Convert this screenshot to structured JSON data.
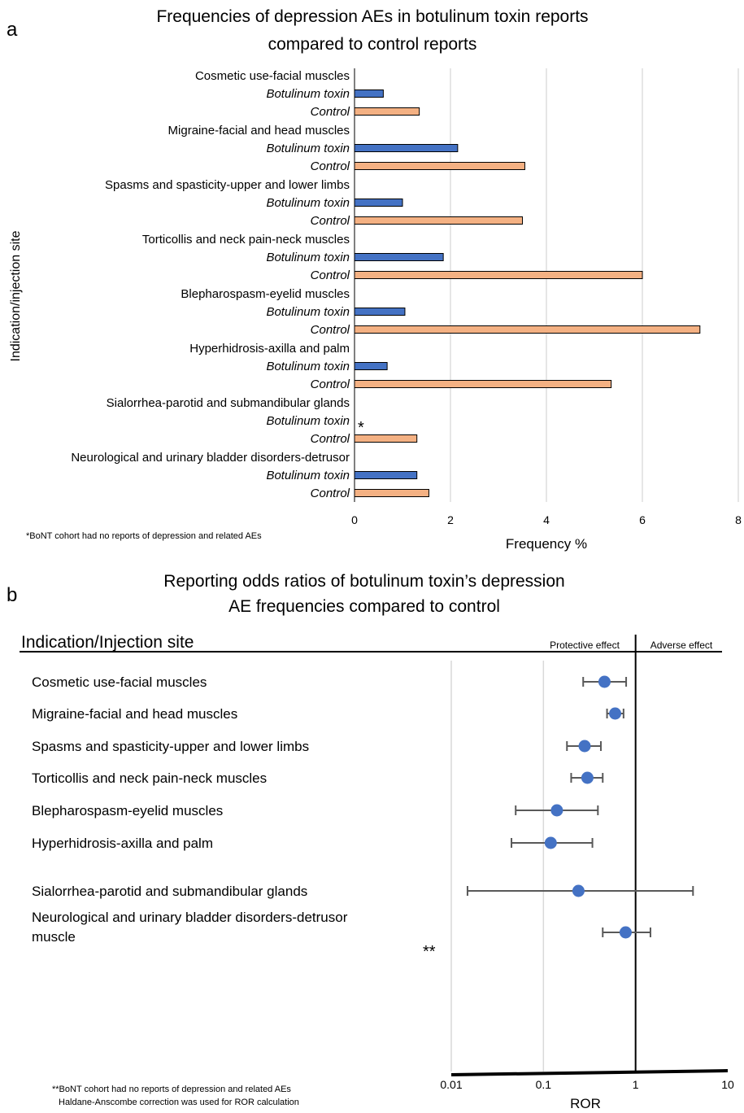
{
  "panel_a": {
    "letter": "a",
    "title_lines": [
      "Frequencies of depression AEs in botulinum toxin reports",
      "compared to control reports"
    ],
    "ylabel": "Indication/injection site",
    "xlabel": "Frequency %",
    "footnote": "*BoNT cohort had no reports of depression and related AEs",
    "asterisk": "*"
  },
  "panel_b": {
    "letter": "b",
    "title_lines": [
      "Reporting odds ratios of botulinum toxin’s depression",
      "AE frequencies compared to control"
    ],
    "header_label": "Indication/Injection site",
    "protective_label": "Protective effect",
    "adverse_label": "Adverse effect",
    "xlabel": "ROR",
    "double_asterisk": "**",
    "footnote_lines": [
      "**BoNT cohort had no reports of depression and related AEs",
      "Haldane-Anscombe correction was used for ROR calculation"
    ]
  },
  "chart_data": [
    {
      "type": "bar",
      "orientation": "horizontal",
      "title": "Frequencies of depression AEs in botulinum toxin reports compared to control reports",
      "xlabel": "Frequency %",
      "ylabel": "Indication/injection site",
      "xlim": [
        0,
        8
      ],
      "xticks": [
        0,
        2,
        4,
        6,
        8
      ],
      "grid": "vertical",
      "categories": [
        "Cosmetic use-facial muscles",
        "Migraine-facial and head muscles",
        "Spasms and spasticity-upper and lower limbs",
        "Torticollis and neck pain-neck muscles",
        "Blepharospasm-eyelid muscles",
        "Hyperhidrosis-axilla and palm",
        "Sialorrhea-parotid and submandibular glands",
        "Neurological and urinary bladder disorders-detrusor"
      ],
      "series": [
        {
          "name": "Botulinum toxin",
          "color": "#4472C4",
          "values": [
            0.6,
            2.15,
            1.0,
            1.85,
            1.05,
            0.68,
            0,
            1.3
          ]
        },
        {
          "name": "Control",
          "color": "#F4B183",
          "values": [
            1.35,
            3.55,
            3.5,
            6.0,
            7.2,
            5.35,
            1.3,
            1.55
          ]
        }
      ]
    },
    {
      "type": "scatter",
      "subtype": "forest",
      "title": "Reporting odds ratios of botulinum toxin’s depression AE frequencies compared to control",
      "xlabel": "ROR",
      "xscale": "log",
      "xlim": [
        0.01,
        10
      ],
      "xticks": [
        "0.01",
        "0.1",
        "1",
        "10"
      ],
      "reference_line": 1,
      "point_color": "#4472C4",
      "categories": [
        "Cosmetic use-facial muscles",
        "Migraine-facial and head muscles",
        "Spasms and spasticity-upper and lower limbs",
        "Torticollis and neck pain-neck muscles",
        "Blepharospasm-eyelid muscles",
        "Hyperhidrosis-axilla and palm",
        "Sialorrhea-parotid and submandibular glands",
        "Neurological and urinary bladder disorders-detrusor muscle"
      ],
      "ror": [
        0.46,
        0.6,
        0.28,
        0.3,
        0.14,
        0.12,
        0.24,
        0.78
      ],
      "ci_lower": [
        0.27,
        0.49,
        0.18,
        0.2,
        0.05,
        0.045,
        0.015,
        0.44
      ],
      "ci_upper": [
        0.79,
        0.74,
        0.42,
        0.44,
        0.39,
        0.34,
        4.2,
        1.45
      ]
    }
  ]
}
